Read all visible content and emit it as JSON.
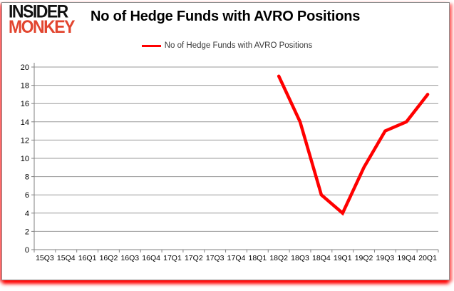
{
  "logo": {
    "line1": "INSIDER",
    "line2": "MONKEY"
  },
  "header": {
    "title": "No of Hedge Funds with AVRO Positions"
  },
  "legend": {
    "label": "No of Hedge Funds with AVRO Positions",
    "swatch_color": "#ff0000"
  },
  "colors": {
    "line": "#ff0000",
    "grid": "#9a9a9a",
    "axis": "#808080",
    "tick_text": "#000000",
    "logo_black": "#111111",
    "logo_red": "#e2452f",
    "border_glow": "#ff0000"
  },
  "chart_data": {
    "type": "line",
    "title": "No of Hedge Funds with AVRO Positions",
    "categories": [
      "15Q3",
      "15Q4",
      "16Q1",
      "16Q2",
      "16Q3",
      "16Q4",
      "17Q1",
      "17Q2",
      "17Q3",
      "17Q4",
      "18Q1",
      "18Q2",
      "18Q3",
      "18Q4",
      "19Q1",
      "19Q2",
      "19Q3",
      "19Q4",
      "20Q1"
    ],
    "series": [
      {
        "name": "No of Hedge Funds with AVRO Positions",
        "color": "#ff0000",
        "values": [
          null,
          null,
          null,
          null,
          null,
          null,
          null,
          null,
          null,
          null,
          null,
          19,
          14,
          6,
          4,
          9,
          13,
          14,
          17
        ]
      }
    ],
    "xlabel": "",
    "ylabel": "",
    "ylim": [
      0,
      20
    ],
    "yticks": [
      0,
      2,
      4,
      6,
      8,
      10,
      12,
      14,
      16,
      18,
      20
    ],
    "grid": true,
    "legend_position": "top"
  }
}
